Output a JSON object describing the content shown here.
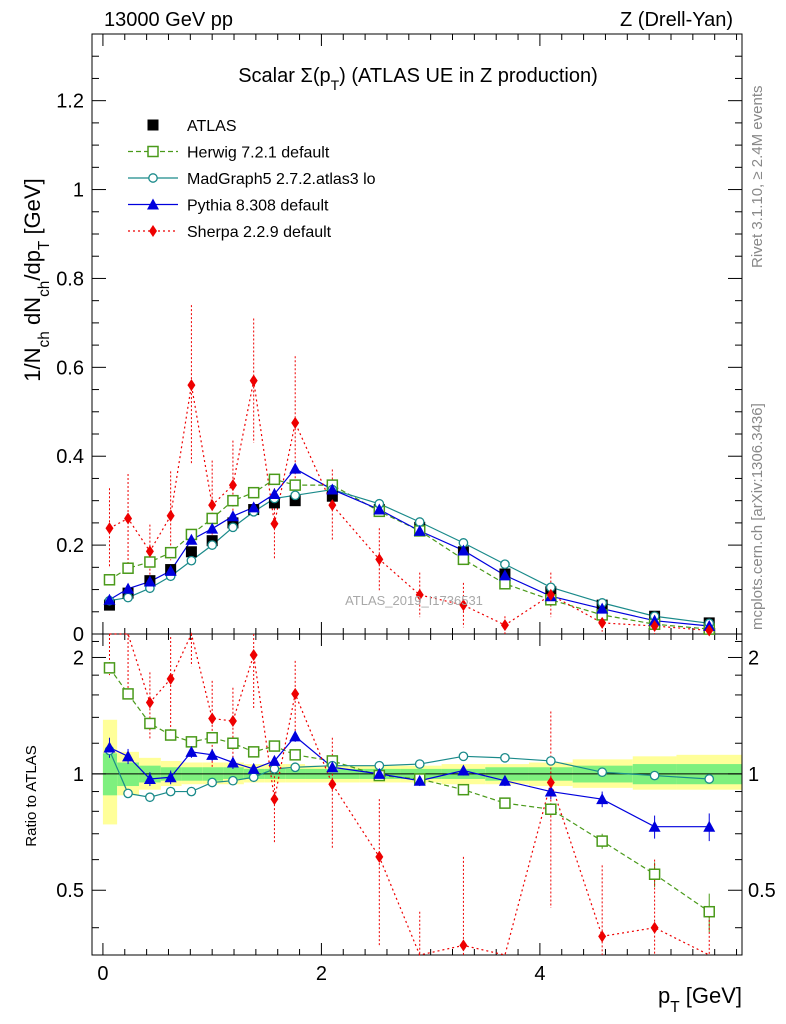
{
  "header": {
    "left": "13000 GeV pp",
    "right": "Z (Drell-Yan)"
  },
  "side_labels": {
    "top": "Rivet 3.1.10, ≥ 2.4M events",
    "bottom": "mcplots.cern.ch [arXiv:1306.3436]"
  },
  "chart_data": {
    "type": "scatter",
    "title": "Scalar Σ(p_T) (ATLAS UE in Z production)",
    "watermark": "ATLAS_2019_I1736531",
    "xlabel": "p_T [GeV]",
    "ylabel": "1/N_ch dN_ch/dp_T [GeV]",
    "ratio_ylabel": "Ratio to ATLAS",
    "xlim": [
      -0.1,
      5.85
    ],
    "ylim": [
      0,
      1.35
    ],
    "ratio_ylim": [
      0.34,
      2.3
    ],
    "ratio_yscale": "log",
    "xticks": [
      0,
      2,
      4
    ],
    "yticks": [
      0,
      0.2,
      0.4,
      0.6,
      0.8,
      1,
      1.2
    ],
    "ytick_labels": [
      "0",
      "0.2",
      "0.4",
      "0.6",
      "0.8",
      "1",
      "1.2"
    ],
    "ratio_yticks": [
      0.5,
      1,
      2
    ],
    "ratio_ytick_labels": [
      "0.5",
      "1",
      "2"
    ],
    "legend_position": "top-left",
    "x": [
      0.06,
      0.23,
      0.43,
      0.62,
      0.81,
      1.0,
      1.19,
      1.38,
      1.57,
      1.76,
      2.1,
      2.53,
      2.9,
      3.3,
      3.68,
      4.1,
      4.57,
      5.05,
      5.55
    ],
    "reference": {
      "name": "ATLAS",
      "color": "#000000",
      "values": [
        0.065,
        0.092,
        0.12,
        0.145,
        0.185,
        0.21,
        0.25,
        0.28,
        0.295,
        0.3,
        0.31,
        0.28,
        0.24,
        0.185,
        0.135,
        0.095,
        0.065,
        0.04,
        0.025
      ]
    },
    "bands": {
      "inner_color": "#7ef07e",
      "outer_color": "#ffff99",
      "edges": [
        0.0,
        0.13,
        0.33,
        0.53,
        0.72,
        0.91,
        1.1,
        1.29,
        1.48,
        1.67,
        1.85,
        2.35,
        2.72,
        3.1,
        3.5,
        3.9,
        4.3,
        4.85,
        5.25,
        5.85
      ],
      "outer_lo": [
        0.74,
        0.88,
        0.91,
        0.93,
        0.94,
        0.94,
        0.94,
        0.95,
        0.95,
        0.95,
        0.95,
        0.95,
        0.95,
        0.94,
        0.94,
        0.93,
        0.92,
        0.91,
        0.91
      ],
      "outer_hi": [
        1.38,
        1.14,
        1.1,
        1.08,
        1.07,
        1.07,
        1.07,
        1.06,
        1.06,
        1.06,
        1.05,
        1.05,
        1.05,
        1.06,
        1.06,
        1.07,
        1.09,
        1.11,
        1.12
      ],
      "inner_lo": [
        0.88,
        0.93,
        0.95,
        0.96,
        0.96,
        0.96,
        0.97,
        0.97,
        0.97,
        0.97,
        0.97,
        0.97,
        0.97,
        0.97,
        0.96,
        0.96,
        0.95,
        0.94,
        0.94
      ],
      "inner_hi": [
        1.13,
        1.07,
        1.05,
        1.04,
        1.04,
        1.04,
        1.04,
        1.03,
        1.03,
        1.03,
        1.03,
        1.03,
        1.03,
        1.03,
        1.04,
        1.04,
        1.05,
        1.06,
        1.06
      ]
    },
    "series": [
      {
        "name": "Herwig 7.2.1 default",
        "color": "#4a9a1a",
        "marker": "open-square",
        "line": "dashed",
        "values": [
          0.122,
          0.148,
          0.162,
          0.183,
          0.224,
          0.26,
          0.3,
          0.318,
          0.348,
          0.335,
          0.335,
          0.276,
          0.232,
          0.168,
          0.113,
          0.077,
          0.043,
          0.022,
          0.011
        ],
        "ratio": [
          1.88,
          1.61,
          1.35,
          1.26,
          1.21,
          1.24,
          1.2,
          1.14,
          1.18,
          1.12,
          1.08,
          0.99,
          0.97,
          0.91,
          0.84,
          0.81,
          0.67,
          0.55,
          0.44
        ],
        "ratio_err": [
          0.03,
          0.02,
          0.02,
          0.02,
          0.02,
          0.02,
          0.02,
          0.02,
          0.02,
          0.02,
          0.02,
          0.02,
          0.02,
          0.02,
          0.02,
          0.03,
          0.03,
          0.04,
          0.05
        ]
      },
      {
        "name": "MadGraph5 2.7.2.atlas3 lo",
        "color": "#1a8a8a",
        "marker": "open-circle",
        "line": "solid",
        "values": [
          0.075,
          0.082,
          0.103,
          0.13,
          0.165,
          0.2,
          0.24,
          0.275,
          0.305,
          0.312,
          0.325,
          0.293,
          0.252,
          0.205,
          0.157,
          0.105,
          0.07,
          0.04,
          0.024
        ],
        "ratio": [
          1.15,
          0.89,
          0.87,
          0.9,
          0.9,
          0.95,
          0.96,
          0.98,
          1.03,
          1.04,
          1.05,
          1.05,
          1.06,
          1.11,
          1.1,
          1.08,
          1.01,
          0.99,
          0.97
        ],
        "ratio_err": [
          0.02,
          0.01,
          0.01,
          0.01,
          0.01,
          0.01,
          0.01,
          0.01,
          0.01,
          0.01,
          0.01,
          0.01,
          0.01,
          0.01,
          0.01,
          0.01,
          0.01,
          0.01,
          0.02
        ]
      },
      {
        "name": "Pythia 8.308 default",
        "color": "#0000dd",
        "marker": "filled-triangle",
        "line": "solid",
        "values": [
          0.077,
          0.102,
          0.118,
          0.142,
          0.212,
          0.237,
          0.265,
          0.285,
          0.315,
          0.372,
          0.325,
          0.28,
          0.232,
          0.188,
          0.132,
          0.085,
          0.057,
          0.03,
          0.018
        ],
        "ratio": [
          1.17,
          1.11,
          0.97,
          0.98,
          1.14,
          1.12,
          1.07,
          1.03,
          1.08,
          1.25,
          1.04,
          1.0,
          0.96,
          1.02,
          0.96,
          0.9,
          0.86,
          0.73,
          0.73
        ],
        "ratio_err": [
          0.07,
          0.05,
          0.04,
          0.04,
          0.04,
          0.04,
          0.04,
          0.03,
          0.03,
          0.04,
          0.03,
          0.03,
          0.03,
          0.03,
          0.03,
          0.04,
          0.04,
          0.05,
          0.06
        ]
      },
      {
        "name": "Sherpa 2.2.9 default",
        "color": "#ee0000",
        "marker": "filled-diamond",
        "line": "dotted",
        "values": [
          0.238,
          0.26,
          0.186,
          0.266,
          0.56,
          0.29,
          0.335,
          0.57,
          0.248,
          0.475,
          0.29,
          0.168,
          0.088,
          0.065,
          0.02,
          0.088,
          0.025,
          0.018,
          0.008
        ],
        "ratio": [
          2.7,
          2.4,
          1.53,
          1.76,
          2.9,
          1.39,
          1.37,
          2.03,
          0.86,
          1.61,
          0.94,
          0.61,
          0.29,
          0.36,
          0.16,
          0.95,
          0.38,
          0.4,
          0.3
        ],
        "ratio_err": [
          0.9,
          0.8,
          0.3,
          0.5,
          1.0,
          0.35,
          0.3,
          0.55,
          0.2,
          0.35,
          0.3,
          0.25,
          0.15,
          0.25,
          0.1,
          0.5,
          0.2,
          0.2,
          0.15
        ],
        "err": [
          0.09,
          0.1,
          0.06,
          0.1,
          0.18,
          0.1,
          0.1,
          0.14,
          0.08,
          0.15,
          0.08,
          0.07,
          0.05,
          0.05,
          0.02,
          0.05,
          0.02,
          0.02,
          0.01
        ]
      }
    ]
  }
}
